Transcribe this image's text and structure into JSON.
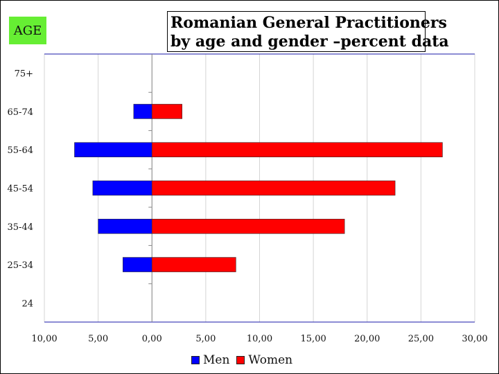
{
  "badge": {
    "label": "AGE",
    "color": "#66ee33"
  },
  "chart_data": {
    "type": "bar",
    "orientation": "horizontal",
    "title": "Romanian General Practitioners by age and gender –percent data",
    "title_lines": [
      "Romanian General Practitioners",
      "by age and gender –percent data"
    ],
    "categories": [
      "75+",
      "65-74",
      "55-64",
      "45-54",
      "35-44",
      "25-34",
      "24"
    ],
    "series": [
      {
        "name": "Men",
        "color": "#0000ff",
        "values": [
          0,
          1.7,
          7.2,
          5.5,
          5.0,
          2.7,
          0
        ]
      },
      {
        "name": "Women",
        "color": "#ff0000",
        "values": [
          0,
          2.8,
          27.0,
          22.6,
          17.9,
          7.8,
          0
        ]
      }
    ],
    "x_ticks": [
      "10,00",
      "5,00",
      "0,00",
      "5,00",
      "10,00",
      "15,00",
      "20,00",
      "25,00",
      "30,00"
    ],
    "x_tick_values": [
      -10,
      -5,
      0,
      5,
      10,
      15,
      20,
      25,
      30
    ],
    "xlim": [
      -10,
      30
    ],
    "grid": true,
    "legend_position": "bottom"
  }
}
